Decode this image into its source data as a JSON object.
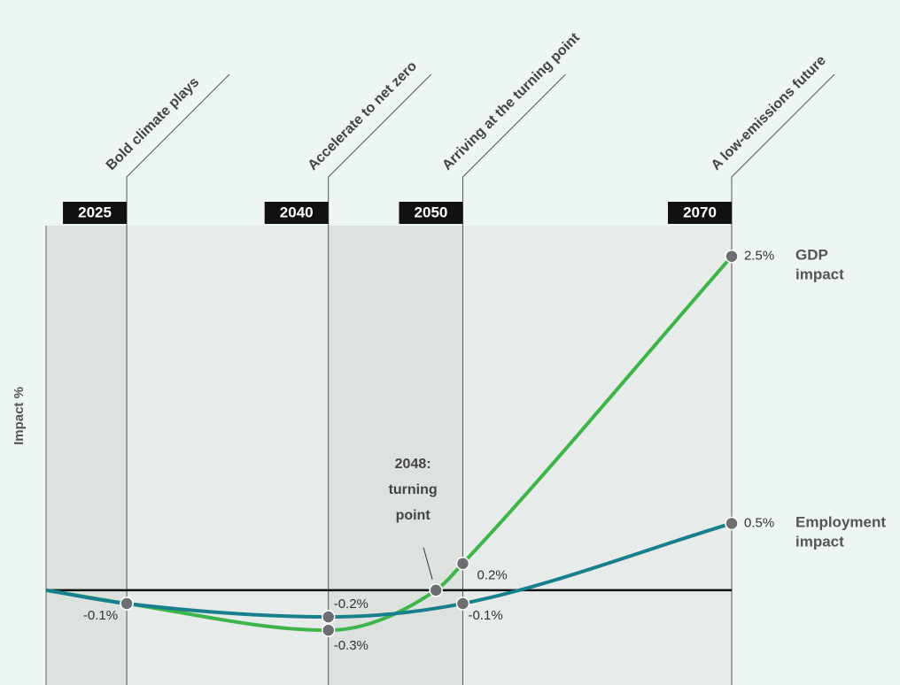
{
  "chart_data": {
    "type": "line",
    "y_label": "Impact %",
    "annotation": "2048: turning point",
    "annotation_x": 2048,
    "xlim": [
      2019,
      2070
    ],
    "xticks": [
      2025,
      2040,
      2050,
      2070
    ],
    "phases": [
      "Bold climate plays",
      "Accelerate to net zero",
      "Arriving at the turning point",
      "A low-emissions future"
    ],
    "ylim": [
      -0.71,
      2.73
    ],
    "zero_line": 0,
    "series": [
      {
        "name": "GDP impact",
        "color": "#3db54a",
        "x": [
          2019,
          2025,
          2040,
          2048,
          2050,
          2070
        ],
        "values": [
          0,
          -0.1,
          -0.3,
          0,
          0.2,
          2.5
        ],
        "value_labels": [
          null,
          "-0.1%",
          "-0.3%",
          null,
          "0.2%",
          "2.5%"
        ]
      },
      {
        "name": "Employment impact",
        "color": "#17808c",
        "x": [
          2019,
          2025,
          2040,
          2050,
          2070
        ],
        "values": [
          0,
          -0.1,
          -0.2,
          -0.1,
          0.5
        ],
        "value_labels": [
          null,
          null,
          "-0.2%",
          "-0.1%",
          "0.5%"
        ]
      }
    ]
  }
}
